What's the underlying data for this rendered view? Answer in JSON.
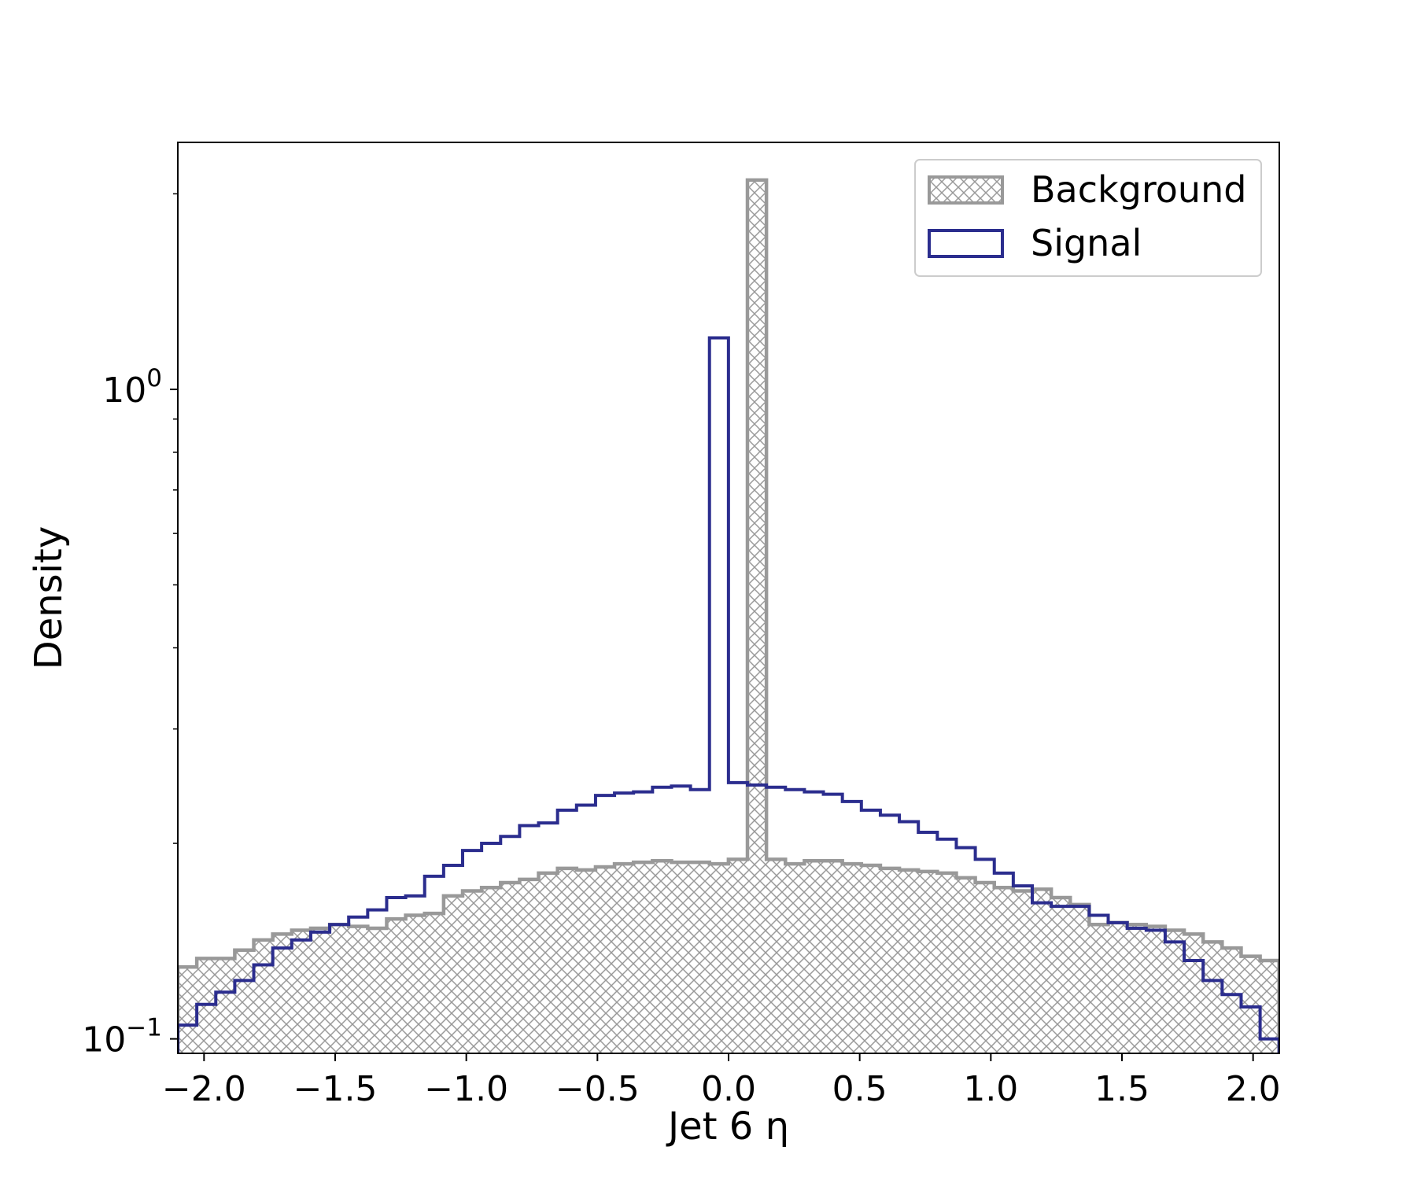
{
  "chart_data": {
    "type": "histogram",
    "xlabel": "Jet 6 η",
    "ylabel": "Density",
    "xlim": [
      -2.1,
      2.1
    ],
    "ylim": [
      0.095,
      2.4
    ],
    "yscale": "log",
    "grid": false,
    "legend_position": "top-right",
    "bins": {
      "start": -2.1,
      "width": 0.0724,
      "count": 58
    },
    "x_ticks": [
      {
        "value": -2.0,
        "label": "−2.0"
      },
      {
        "value": -1.5,
        "label": "−1.5"
      },
      {
        "value": -1.0,
        "label": "−1.0"
      },
      {
        "value": -0.5,
        "label": "−0.5"
      },
      {
        "value": 0.0,
        "label": "0.0"
      },
      {
        "value": 0.5,
        "label": "0.5"
      },
      {
        "value": 1.0,
        "label": "1.0"
      },
      {
        "value": 1.5,
        "label": "1.5"
      },
      {
        "value": 2.0,
        "label": "2.0"
      }
    ],
    "y_ticks": [
      {
        "value": 0.1,
        "base": "10",
        "exp": "−1"
      },
      {
        "value": 1.0,
        "base": "10",
        "exp": "0"
      }
    ],
    "series": [
      {
        "name": "Background",
        "style": "hatched",
        "color": "#999999",
        "values": [
          0.129,
          0.133,
          0.133,
          0.137,
          0.142,
          0.145,
          0.147,
          0.148,
          0.15,
          0.149,
          0.148,
          0.153,
          0.155,
          0.156,
          0.166,
          0.169,
          0.171,
          0.174,
          0.176,
          0.18,
          0.183,
          0.182,
          0.184,
          0.186,
          0.187,
          0.188,
          0.187,
          0.187,
          0.186,
          0.189,
          2.1,
          0.189,
          0.186,
          0.188,
          0.188,
          0.186,
          0.185,
          0.183,
          0.182,
          0.181,
          0.18,
          0.177,
          0.174,
          0.171,
          0.169,
          0.17,
          0.165,
          0.161,
          0.15,
          0.151,
          0.15,
          0.149,
          0.147,
          0.145,
          0.141,
          0.138,
          0.134,
          0.132
        ]
      },
      {
        "name": "Signal",
        "style": "step",
        "color": "#2b2d8e",
        "values": [
          0.105,
          0.113,
          0.118,
          0.123,
          0.13,
          0.138,
          0.142,
          0.146,
          0.15,
          0.154,
          0.158,
          0.165,
          0.166,
          0.178,
          0.185,
          0.195,
          0.2,
          0.205,
          0.213,
          0.215,
          0.225,
          0.229,
          0.237,
          0.239,
          0.24,
          0.244,
          0.245,
          0.242,
          1.2,
          0.248,
          0.246,
          0.244,
          0.242,
          0.24,
          0.238,
          0.232,
          0.225,
          0.221,
          0.216,
          0.208,
          0.203,
          0.197,
          0.189,
          0.18,
          0.172,
          0.162,
          0.16,
          0.16,
          0.155,
          0.151,
          0.148,
          0.147,
          0.141,
          0.132,
          0.123,
          0.117,
          0.112,
          0.1
        ]
      }
    ]
  }
}
